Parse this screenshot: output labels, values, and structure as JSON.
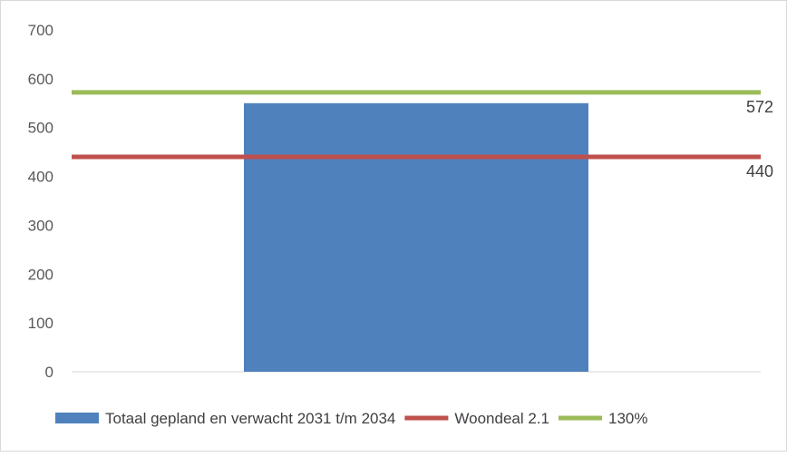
{
  "chart_data": {
    "type": "bar",
    "categories": [
      ""
    ],
    "series": [
      {
        "name": "Totaal gepland en verwacht 2031 t/m 2034",
        "type": "bar",
        "values": [
          550
        ],
        "color": "#4F81BD"
      },
      {
        "name": "Woondeal 2.1",
        "type": "line",
        "value": 440,
        "label": "440",
        "color": "#C0504D"
      },
      {
        "name": "130%",
        "type": "line",
        "value": 572,
        "label": "572",
        "color": "#9BBB59"
      }
    ],
    "yticks": [
      "0",
      "100",
      "200",
      "300",
      "400",
      "500",
      "600",
      "700"
    ],
    "ylim": [
      0,
      700
    ],
    "grid": false,
    "legend": "bottom",
    "title": "",
    "xlabel": "",
    "ylabel": ""
  }
}
